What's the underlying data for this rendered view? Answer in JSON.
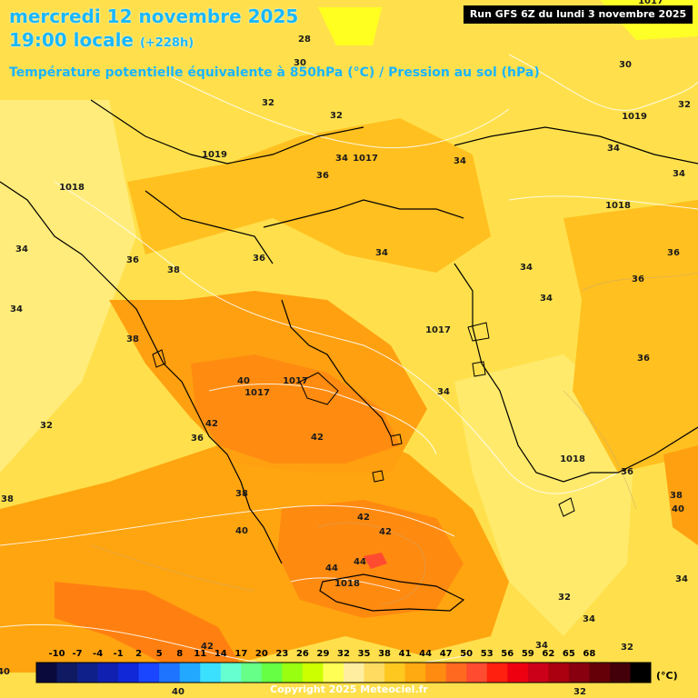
{
  "header": {
    "date": "mercredi 12 novembre 2025",
    "time": "19:00 locale",
    "offset": "(+228h)",
    "subtitle": "Température potentielle équivalente à 850hPa (°C) / Pression au sol (hPa)",
    "run": "Run GFS 6Z du lundi 3 novembre 2025"
  },
  "footer": {
    "copyright": "Copyright 2025 Meteociel.fr"
  },
  "legend": {
    "unit": "(°C)",
    "ticks": [
      "-10",
      "-7",
      "-4",
      "-1",
      "2",
      "5",
      "8",
      "11",
      "14",
      "17",
      "20",
      "23",
      "26",
      "29",
      "32",
      "35",
      "38",
      "41",
      "44",
      "47",
      "50",
      "53",
      "56",
      "59",
      "62",
      "65",
      "68"
    ],
    "colors": [
      "#0a0a3c",
      "#101a62",
      "#10208a",
      "#1020b0",
      "#1028d8",
      "#1a46ff",
      "#1e74ff",
      "#22a8ff",
      "#3ce0ff",
      "#66ffd0",
      "#66ff88",
      "#66ff44",
      "#99ff10",
      "#ccff00",
      "#ffff55",
      "#ffeea0",
      "#ffdc60",
      "#ffc820",
      "#ffaa10",
      "#ff8c10",
      "#ff6a20",
      "#ff4c30",
      "#ff2010",
      "#ee0010",
      "#cc0018",
      "#aa0010",
      "#880010",
      "#660008",
      "#44000a",
      "#000000"
    ]
  },
  "map": {
    "temp_labels": [
      {
        "t": "28"
      },
      {
        "t": "30"
      },
      {
        "t": "30"
      },
      {
        "t": "32"
      },
      {
        "t": "32"
      },
      {
        "t": "32"
      },
      {
        "t": "34"
      },
      {
        "t": "34"
      },
      {
        "t": "34"
      },
      {
        "t": "34"
      },
      {
        "t": "36"
      },
      {
        "t": "34"
      },
      {
        "t": "36"
      },
      {
        "t": "38"
      },
      {
        "t": "36"
      },
      {
        "t": "34"
      },
      {
        "t": "34"
      },
      {
        "t": "34"
      },
      {
        "t": "36"
      },
      {
        "t": "34"
      },
      {
        "t": "36"
      },
      {
        "t": "38"
      },
      {
        "t": "40"
      },
      {
        "t": "42"
      },
      {
        "t": "36"
      },
      {
        "t": "42"
      },
      {
        "t": "34"
      },
      {
        "t": "36"
      },
      {
        "t": "36"
      },
      {
        "t": "38"
      },
      {
        "t": "40"
      },
      {
        "t": "38"
      },
      {
        "t": "38"
      },
      {
        "t": "40"
      },
      {
        "t": "42"
      },
      {
        "t": "42"
      },
      {
        "t": "44"
      },
      {
        "t": "44"
      },
      {
        "t": "34"
      },
      {
        "t": "32"
      },
      {
        "t": "34"
      },
      {
        "t": "32"
      },
      {
        "t": "42"
      },
      {
        "t": "40"
      },
      {
        "t": "32"
      },
      {
        "t": "34"
      },
      {
        "t": "32"
      },
      {
        "t": "40"
      }
    ],
    "pressure_labels": [
      {
        "p": "1019"
      },
      {
        "p": "1018"
      },
      {
        "p": "1017"
      },
      {
        "p": "1019"
      },
      {
        "p": "1018"
      },
      {
        "p": "1017"
      },
      {
        "p": "1017"
      },
      {
        "p": "1017"
      },
      {
        "p": "1018"
      },
      {
        "p": "1018"
      },
      {
        "p": "1017"
      }
    ]
  }
}
